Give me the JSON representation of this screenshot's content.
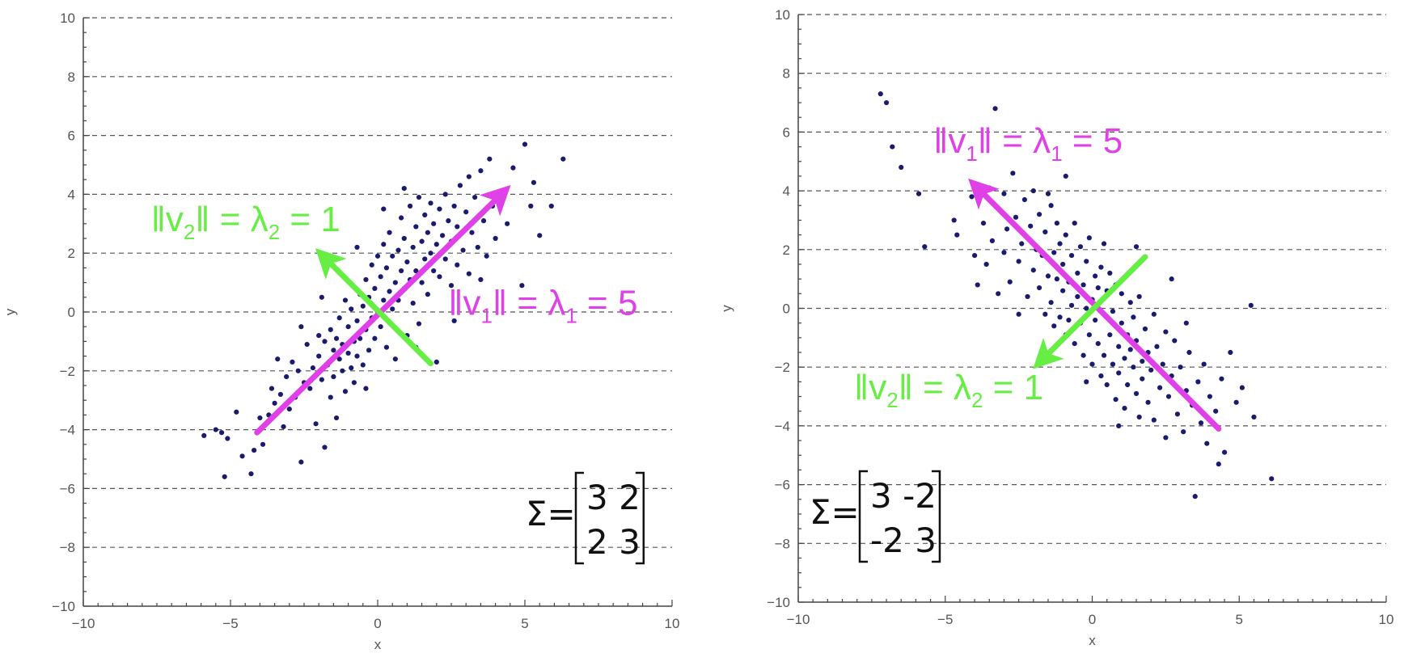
{
  "chart_data": [
    {
      "type": "scatter",
      "xlabel": "x",
      "ylabel": "y",
      "xlim": [
        -10,
        10
      ],
      "ylim": [
        -10,
        10
      ],
      "xticks": [
        -10,
        -5,
        0,
        5,
        10
      ],
      "xtick_labels": [
        "−10",
        "−5",
        "0",
        "5",
        "10"
      ],
      "yticks": [
        -10,
        -8,
        -6,
        -4,
        -2,
        0,
        2,
        4,
        6,
        8,
        10
      ],
      "ytick_labels": [
        "−10",
        "−8",
        "−6",
        "−4",
        "−2",
        "0",
        "2",
        "4",
        "6",
        "8",
        "10"
      ],
      "grid": "horizontal dashed",
      "points_color": "#1a1a6e",
      "covariance": [
        [
          3,
          2
        ],
        [
          2,
          3
        ]
      ],
      "matrix_symbol": "Σ=",
      "matrix_rows": [
        "3 2",
        "2 3"
      ],
      "eigenvectors": [
        {
          "name": "v1",
          "color": "#e040e8",
          "from": [
            -4.1,
            -4.1
          ],
          "to": [
            4.3,
            4.1
          ]
        },
        {
          "name": "v2",
          "color": "#66ee44",
          "from": [
            1.8,
            -1.75
          ],
          "to": [
            -1.9,
            1.95
          ]
        }
      ],
      "annotations": [
        {
          "id": "v2",
          "color": "#66ee44",
          "x": -7.7,
          "y": 2.75,
          "parts": [
            "‖v",
            "2",
            "‖ = λ",
            "2",
            " = 1"
          ]
        },
        {
          "id": "v1",
          "color": "#e040e8",
          "x": 2.4,
          "y": -0.1,
          "parts": [
            "‖v",
            "1",
            "‖ = λ",
            "1",
            " = 5"
          ]
        }
      ],
      "points": [
        [
          -5.9,
          -4.2
        ],
        [
          -5.5,
          -4.0
        ],
        [
          -5.3,
          -4.1
        ],
        [
          -5.2,
          -5.6
        ],
        [
          -5.1,
          -4.3
        ],
        [
          -4.8,
          -3.4
        ],
        [
          -4.6,
          -4.9
        ],
        [
          -4.3,
          -5.5
        ],
        [
          -4.2,
          -4.7
        ],
        [
          -4.0,
          -3.6
        ],
        [
          -3.9,
          -4.5
        ],
        [
          -3.7,
          -3.5
        ],
        [
          -3.6,
          -2.6
        ],
        [
          -3.5,
          -3.1
        ],
        [
          -3.3,
          -2.8
        ],
        [
          -3.2,
          -3.9
        ],
        [
          -3.1,
          -2.2
        ],
        [
          -3.0,
          -3.3
        ],
        [
          -2.9,
          -1.7
        ],
        [
          -2.8,
          -2.9
        ],
        [
          -2.7,
          -2.0
        ],
        [
          -2.6,
          -5.1
        ],
        [
          -2.5,
          -2.4
        ],
        [
          -2.4,
          -1.1
        ],
        [
          -2.3,
          -2.6
        ],
        [
          -2.2,
          -1.9
        ],
        [
          -2.1,
          -3.8
        ],
        [
          -2.0,
          -0.8
        ],
        [
          -2.0,
          -1.5
        ],
        [
          -1.9,
          -2.3
        ],
        [
          -1.8,
          -1.0
        ],
        [
          -1.8,
          -4.6
        ],
        [
          -1.7,
          -1.8
        ],
        [
          -1.6,
          -0.6
        ],
        [
          -1.6,
          -2.9
        ],
        [
          -1.5,
          -1.3
        ],
        [
          -1.5,
          -2.2
        ],
        [
          -1.4,
          -0.9
        ],
        [
          -1.4,
          -3.6
        ],
        [
          -1.3,
          -1.6
        ],
        [
          -1.3,
          -0.2
        ],
        [
          -1.2,
          -2.0
        ],
        [
          -1.2,
          -1.1
        ],
        [
          -1.1,
          0.4
        ],
        [
          -1.1,
          -2.7
        ],
        [
          -1.0,
          -1.4
        ],
        [
          -1.0,
          -0.5
        ],
        [
          -0.9,
          -1.9
        ],
        [
          -0.9,
          0.1
        ],
        [
          -0.8,
          -1.0
        ],
        [
          -0.8,
          -2.4
        ],
        [
          -0.7,
          -0.3
        ],
        [
          -0.7,
          -1.5
        ],
        [
          -0.6,
          0.6
        ],
        [
          -0.6,
          -0.9
        ],
        [
          -0.5,
          -1.8
        ],
        [
          -0.5,
          0.2
        ],
        [
          -0.4,
          -0.6
        ],
        [
          -0.4,
          1.1
        ],
        [
          -0.3,
          -1.3
        ],
        [
          -0.3,
          0.5
        ],
        [
          -0.2,
          -0.2
        ],
        [
          -0.2,
          1.6
        ],
        [
          -0.1,
          -0.9
        ],
        [
          -0.1,
          0.8
        ],
        [
          0.0,
          0.0
        ],
        [
          0.0,
          1.9
        ],
        [
          0.1,
          -0.5
        ],
        [
          0.1,
          1.2
        ],
        [
          0.2,
          0.4
        ],
        [
          0.2,
          2.3
        ],
        [
          0.3,
          -1.2
        ],
        [
          0.3,
          1.5
        ],
        [
          0.4,
          0.7
        ],
        [
          0.4,
          2.7
        ],
        [
          0.5,
          0.1
        ],
        [
          0.5,
          1.9
        ],
        [
          0.6,
          1.0
        ],
        [
          0.6,
          -1.6
        ],
        [
          0.7,
          2.1
        ],
        [
          0.7,
          0.4
        ],
        [
          0.8,
          1.4
        ],
        [
          0.8,
          3.2
        ],
        [
          0.9,
          0.8
        ],
        [
          0.9,
          2.5
        ],
        [
          1.0,
          1.7
        ],
        [
          1.0,
          -0.8
        ],
        [
          1.1,
          3.6
        ],
        [
          1.1,
          1.1
        ],
        [
          1.2,
          2.2
        ],
        [
          1.2,
          0.3
        ],
        [
          1.3,
          2.9
        ],
        [
          1.3,
          1.4
        ],
        [
          1.4,
          3.9
        ],
        [
          1.4,
          -0.4
        ],
        [
          1.5,
          2.4
        ],
        [
          1.5,
          1.0
        ],
        [
          1.6,
          3.3
        ],
        [
          1.6,
          1.8
        ],
        [
          1.7,
          2.7
        ],
        [
          1.7,
          0.6
        ],
        [
          1.8,
          3.7
        ],
        [
          1.8,
          2.0
        ],
        [
          1.9,
          1.4
        ],
        [
          1.9,
          3.0
        ],
        [
          2.0,
          -1.7
        ],
        [
          2.0,
          2.3
        ],
        [
          2.1,
          3.5
        ],
        [
          2.1,
          1.2
        ],
        [
          2.2,
          2.6
        ],
        [
          2.3,
          4.0
        ],
        [
          2.3,
          1.8
        ],
        [
          2.4,
          3.1
        ],
        [
          2.5,
          0.9
        ],
        [
          2.5,
          2.4
        ],
        [
          2.6,
          3.6
        ],
        [
          2.7,
          1.6
        ],
        [
          2.7,
          2.9
        ],
        [
          2.8,
          4.3
        ],
        [
          2.9,
          2.1
        ],
        [
          3.0,
          3.4
        ],
        [
          3.1,
          1.3
        ],
        [
          3.1,
          4.6
        ],
        [
          3.2,
          2.7
        ],
        [
          3.3,
          3.9
        ],
        [
          3.4,
          2.2
        ],
        [
          3.5,
          4.8
        ],
        [
          3.6,
          3.1
        ],
        [
          3.7,
          1.9
        ],
        [
          3.8,
          5.2
        ],
        [
          3.9,
          3.6
        ],
        [
          4.0,
          2.5
        ],
        [
          4.2,
          4.1
        ],
        [
          4.4,
          3.0
        ],
        [
          4.6,
          4.9
        ],
        [
          4.9,
          0.9
        ],
        [
          5.0,
          5.7
        ],
        [
          5.2,
          3.6
        ],
        [
          5.3,
          4.4
        ],
        [
          5.5,
          2.6
        ],
        [
          5.9,
          3.6
        ],
        [
          6.3,
          5.2
        ],
        [
          -0.7,
          2.2
        ],
        [
          0.9,
          4.2
        ],
        [
          -1.9,
          0.5
        ],
        [
          2.6,
          -0.3
        ],
        [
          -2.6,
          -0.5
        ],
        [
          1.3,
          -1.2
        ],
        [
          -0.4,
          -2.6
        ],
        [
          3.5,
          1.1
        ],
        [
          0.2,
          3.5
        ],
        [
          -3.4,
          -1.6
        ]
      ]
    },
    {
      "type": "scatter",
      "xlabel": "x",
      "ylabel": "y",
      "xlim": [
        -10,
        10
      ],
      "ylim": [
        -10,
        10
      ],
      "xticks": [
        -10,
        -5,
        0,
        5,
        10
      ],
      "xtick_labels": [
        "−10",
        "−5",
        "0",
        "5",
        "10"
      ],
      "yticks": [
        -10,
        -8,
        -6,
        -4,
        -2,
        0,
        2,
        4,
        6,
        8,
        10
      ],
      "ytick_labels": [
        "−10",
        "−8",
        "−6",
        "−4",
        "−2",
        "0",
        "2",
        "4",
        "6",
        "8",
        "10"
      ],
      "grid": "horizontal dashed",
      "points_color": "#1a1a6e",
      "covariance": [
        [
          3,
          -2
        ],
        [
          -2,
          3
        ]
      ],
      "matrix_symbol": "Σ=",
      "matrix_rows": [
        "3 -2",
        "-2 3"
      ],
      "eigenvectors": [
        {
          "name": "v1",
          "color": "#e040e8",
          "from": [
            4.3,
            -4.1
          ],
          "to": [
            -4.0,
            4.2
          ]
        },
        {
          "name": "v2",
          "color": "#66ee44",
          "from": [
            1.8,
            1.75
          ],
          "to": [
            -1.8,
            -1.85
          ]
        }
      ],
      "annotations": [
        {
          "id": "v1",
          "color": "#e040e8",
          "x": -5.4,
          "y": 5.3,
          "parts": [
            "‖v",
            "1",
            "‖ = λ",
            "1",
            " = 5"
          ]
        },
        {
          "id": "v2",
          "color": "#66ee44",
          "x": -8.1,
          "y": -3.1,
          "parts": [
            "‖v",
            "2",
            "‖ = λ",
            "2",
            " = 1"
          ]
        }
      ],
      "points": [
        [
          -7.2,
          7.3
        ],
        [
          -7.0,
          7.0
        ],
        [
          -6.8,
          5.5
        ],
        [
          -6.5,
          4.8
        ],
        [
          -5.9,
          3.9
        ],
        [
          -5.7,
          2.1
        ],
        [
          -4.7,
          3.0
        ],
        [
          -4.6,
          2.5
        ],
        [
          -4.1,
          3.8
        ],
        [
          -4.0,
          1.8
        ],
        [
          -3.9,
          0.8
        ],
        [
          -3.7,
          2.9
        ],
        [
          -3.6,
          1.5
        ],
        [
          -3.5,
          4.1
        ],
        [
          -3.4,
          2.3
        ],
        [
          -3.3,
          6.8
        ],
        [
          -3.2,
          0.5
        ],
        [
          -3.1,
          3.3
        ],
        [
          -3.0,
          1.9
        ],
        [
          -2.9,
          2.7
        ],
        [
          -2.8,
          0.9
        ],
        [
          -2.7,
          4.6
        ],
        [
          -2.6,
          3.1
        ],
        [
          -2.5,
          1.6
        ],
        [
          -2.4,
          2.2
        ],
        [
          -2.3,
          3.7
        ],
        [
          -2.2,
          0.4
        ],
        [
          -2.1,
          2.8
        ],
        [
          -2.0,
          1.3
        ],
        [
          -2.0,
          4.0
        ],
        [
          -1.9,
          2.0
        ],
        [
          -1.8,
          0.7
        ],
        [
          -1.8,
          3.2
        ],
        [
          -1.7,
          1.8
        ],
        [
          -1.6,
          -0.2
        ],
        [
          -1.6,
          2.6
        ],
        [
          -1.5,
          1.1
        ],
        [
          -1.4,
          3.5
        ],
        [
          -1.4,
          0.2
        ],
        [
          -1.3,
          1.9
        ],
        [
          -1.3,
          -0.6
        ],
        [
          -1.2,
          2.9
        ],
        [
          -1.2,
          1.0
        ],
        [
          -1.1,
          -0.3
        ],
        [
          -1.1,
          2.2
        ],
        [
          -1.0,
          0.6
        ],
        [
          -1.0,
          1.5
        ],
        [
          -0.9,
          -0.9
        ],
        [
          -0.9,
          2.5
        ],
        [
          -0.8,
          0.9
        ],
        [
          -0.8,
          -0.4
        ],
        [
          -0.7,
          1.8
        ],
        [
          -0.7,
          0.1
        ],
        [
          -0.6,
          2.9
        ],
        [
          -0.6,
          -1.2
        ],
        [
          -0.5,
          1.2
        ],
        [
          -0.5,
          0.4
        ],
        [
          -0.4,
          2.1
        ],
        [
          -0.4,
          -0.5
        ],
        [
          -0.3,
          0.8
        ],
        [
          -0.3,
          -1.6
        ],
        [
          -0.2,
          1.6
        ],
        [
          -0.2,
          0.0
        ],
        [
          -0.1,
          -0.9
        ],
        [
          -0.1,
          2.4
        ],
        [
          0.0,
          0.3
        ],
        [
          0.0,
          -1.9
        ],
        [
          0.1,
          1.1
        ],
        [
          0.1,
          -0.4
        ],
        [
          0.2,
          -1.2
        ],
        [
          0.2,
          0.7
        ],
        [
          0.3,
          -2.3
        ],
        [
          0.3,
          1.4
        ],
        [
          0.4,
          -0.2
        ],
        [
          0.4,
          -1.6
        ],
        [
          0.5,
          0.6
        ],
        [
          0.5,
          -2.6
        ],
        [
          0.6,
          -0.9
        ],
        [
          0.6,
          1.2
        ],
        [
          0.7,
          -1.9
        ],
        [
          0.7,
          -0.1
        ],
        [
          0.8,
          -3.1
        ],
        [
          0.8,
          0.8
        ],
        [
          0.9,
          -1.3
        ],
        [
          0.9,
          -2.2
        ],
        [
          1.0,
          -0.5
        ],
        [
          1.0,
          0.5
        ],
        [
          1.1,
          -1.7
        ],
        [
          1.1,
          -3.4
        ],
        [
          1.2,
          -0.9
        ],
        [
          1.2,
          -2.6
        ],
        [
          1.3,
          0.2
        ],
        [
          1.3,
          -1.4
        ],
        [
          1.4,
          -2.0
        ],
        [
          1.4,
          -0.3
        ],
        [
          1.5,
          -2.9
        ],
        [
          1.5,
          -1.1
        ],
        [
          1.6,
          -3.7
        ],
        [
          1.6,
          0.4
        ],
        [
          1.7,
          -1.8
        ],
        [
          1.7,
          -2.4
        ],
        [
          1.8,
          -0.7
        ],
        [
          1.9,
          -3.2
        ],
        [
          1.9,
          -1.5
        ],
        [
          2.0,
          -2.1
        ],
        [
          2.1,
          -0.2
        ],
        [
          2.1,
          -3.8
        ],
        [
          2.2,
          -1.3
        ],
        [
          2.3,
          -2.7
        ],
        [
          2.4,
          -1.9
        ],
        [
          2.5,
          -4.4
        ],
        [
          2.5,
          -0.8
        ],
        [
          2.6,
          -3.0
        ],
        [
          2.7,
          -2.3
        ],
        [
          2.8,
          -1.1
        ],
        [
          2.9,
          -3.6
        ],
        [
          3.0,
          -2.0
        ],
        [
          3.1,
          -4.2
        ],
        [
          3.2,
          -2.8
        ],
        [
          3.3,
          -1.5
        ],
        [
          3.4,
          -3.3
        ],
        [
          3.5,
          -6.4
        ],
        [
          3.6,
          -2.5
        ],
        [
          3.7,
          -3.9
        ],
        [
          3.8,
          -1.9
        ],
        [
          3.9,
          -4.6
        ],
        [
          4.0,
          -3.0
        ],
        [
          4.2,
          -3.5
        ],
        [
          4.3,
          -5.3
        ],
        [
          4.4,
          -2.4
        ],
        [
          4.5,
          -4.9
        ],
        [
          4.7,
          -1.5
        ],
        [
          4.9,
          -3.2
        ],
        [
          5.1,
          -2.7
        ],
        [
          5.4,
          0.1
        ],
        [
          5.5,
          -3.7
        ],
        [
          6.1,
          -5.8
        ],
        [
          -1.5,
          3.9
        ],
        [
          -0.9,
          4.5
        ],
        [
          0.4,
          2.2
        ],
        [
          -2.5,
          -0.2
        ],
        [
          2.7,
          1.0
        ],
        [
          1.5,
          2.1
        ],
        [
          -0.2,
          -2.5
        ],
        [
          3.2,
          -0.5
        ],
        [
          -3.0,
          3.9
        ],
        [
          0.9,
          -4.0
        ]
      ]
    }
  ]
}
